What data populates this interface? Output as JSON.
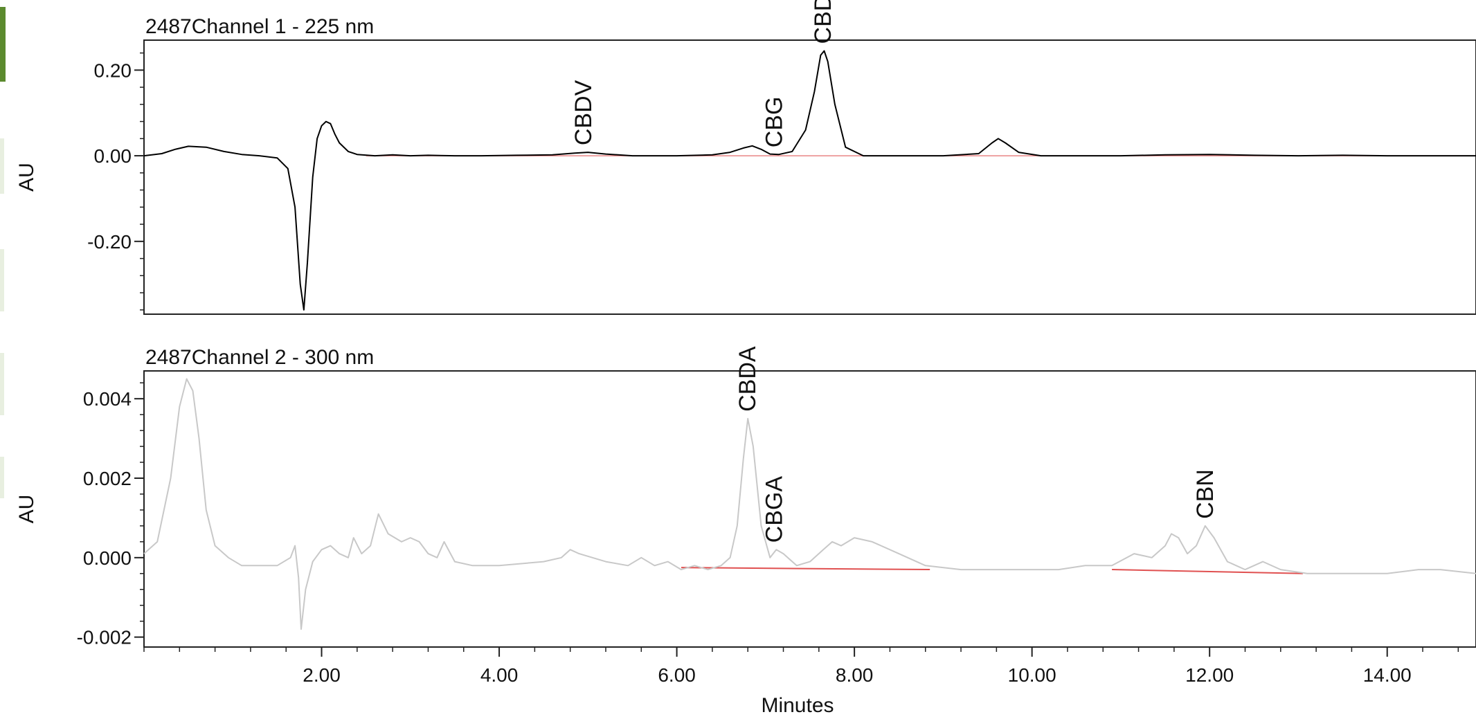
{
  "chart_data": [
    {
      "type": "line",
      "title": "2487Channel 1 - 225 nm",
      "xlabel": "",
      "ylabel": "AU",
      "xlim": [
        0,
        15
      ],
      "ylim": [
        -0.37,
        0.27
      ],
      "yticks": [
        -0.2,
        0.0,
        0.2
      ],
      "ytick_labels": [
        "-0.20",
        "0.00",
        "0.20"
      ],
      "grid": false,
      "line_color": "#000000",
      "baseline_color": "#e05050",
      "peaks": [
        {
          "label": "CBDV",
          "x": 4.95,
          "y": 0.008
        },
        {
          "label": "CBG",
          "x": 7.1,
          "y": 0.003
        },
        {
          "label": "CBD",
          "x": 7.65,
          "y": 0.245
        }
      ],
      "series": [
        {
          "x": [
            0,
            0.2,
            0.35,
            0.5,
            0.7,
            0.9,
            1.1,
            1.3,
            1.5,
            1.62,
            1.7,
            1.76,
            1.8,
            1.84,
            1.9,
            1.95,
            2.0,
            2.05,
            2.1,
            2.15,
            2.2,
            2.3,
            2.4,
            2.6,
            2.8,
            3.0,
            3.2,
            3.5,
            3.8,
            4.2,
            4.6,
            4.85,
            5.0,
            5.2,
            5.5,
            6.0,
            6.4,
            6.6,
            6.75,
            6.85,
            6.95,
            7.05,
            7.15,
            7.3,
            7.45,
            7.55,
            7.62,
            7.66,
            7.7,
            7.78,
            7.9,
            8.1,
            8.5,
            9.0,
            9.4,
            9.55,
            9.62,
            9.7,
            9.85,
            10.1,
            10.5,
            11.0,
            11.5,
            12.0,
            12.5,
            13.0,
            13.5,
            14.0,
            14.5,
            15.0
          ],
          "y": [
            0,
            0.005,
            0.015,
            0.022,
            0.02,
            0.01,
            0.003,
            0.0,
            -0.005,
            -0.03,
            -0.12,
            -0.3,
            -0.36,
            -0.25,
            -0.05,
            0.04,
            0.07,
            0.08,
            0.075,
            0.05,
            0.03,
            0.01,
            0.003,
            0.0,
            0.002,
            0.0,
            0.001,
            0.0,
            0.0,
            0.001,
            0.002,
            0.006,
            0.008,
            0.004,
            0.0,
            0.0,
            0.002,
            0.008,
            0.018,
            0.023,
            0.015,
            0.004,
            0.003,
            0.01,
            0.06,
            0.15,
            0.235,
            0.245,
            0.22,
            0.12,
            0.02,
            0.0,
            0.0,
            0.0,
            0.005,
            0.03,
            0.04,
            0.03,
            0.008,
            0.0,
            0.0,
            0.0,
            0.002,
            0.003,
            0.001,
            0.0,
            0.001,
            0.0,
            0.0,
            0.0
          ]
        }
      ]
    },
    {
      "type": "line",
      "title": "2487Channel 2 - 300 nm",
      "xlabel": "Minutes",
      "ylabel": "AU",
      "xlim": [
        0,
        15
      ],
      "ylim": [
        -0.00225,
        0.0047
      ],
      "yticks": [
        -0.002,
        0.0,
        0.002,
        0.004
      ],
      "ytick_labels": [
        "-0.002",
        "0.000",
        "0.002",
        "0.004"
      ],
      "xticks": [
        2,
        4,
        6,
        8,
        10,
        12,
        14
      ],
      "xtick_labels": [
        "2.00",
        "4.00",
        "6.00",
        "8.00",
        "10.00",
        "12.00",
        "14.00"
      ],
      "grid": false,
      "line_color": "#c8c8c8",
      "baseline_color": "#e05050",
      "peaks": [
        {
          "label": "CBDA",
          "x": 6.8,
          "y": 0.0035
        },
        {
          "label": "CBGA",
          "x": 7.1,
          "y": 0.0002
        },
        {
          "label": "CBN",
          "x": 11.95,
          "y": 0.0008
        }
      ],
      "baselines": [
        {
          "x1": 6.05,
          "y1": -0.00025,
          "x2": 8.85,
          "y2": -0.0003
        },
        {
          "x1": 10.9,
          "y1": -0.0003,
          "x2": 13.05,
          "y2": -0.0004
        }
      ],
      "series": [
        {
          "x": [
            0,
            0.15,
            0.3,
            0.4,
            0.48,
            0.55,
            0.62,
            0.7,
            0.8,
            0.95,
            1.1,
            1.3,
            1.5,
            1.65,
            1.7,
            1.74,
            1.77,
            1.82,
            1.9,
            2.0,
            2.1,
            2.2,
            2.3,
            2.36,
            2.45,
            2.55,
            2.64,
            2.75,
            2.9,
            3.0,
            3.1,
            3.2,
            3.3,
            3.38,
            3.5,
            3.7,
            4.0,
            4.5,
            4.7,
            4.8,
            4.9,
            5.2,
            5.45,
            5.6,
            5.75,
            5.9,
            6.05,
            6.2,
            6.35,
            6.5,
            6.6,
            6.68,
            6.75,
            6.8,
            6.86,
            6.95,
            7.05,
            7.12,
            7.2,
            7.35,
            7.5,
            7.65,
            7.75,
            7.85,
            8.0,
            8.2,
            8.5,
            8.8,
            9.2,
            9.8,
            10.3,
            10.6,
            10.9,
            11.15,
            11.35,
            11.5,
            11.57,
            11.65,
            11.75,
            11.85,
            11.95,
            12.05,
            12.2,
            12.4,
            12.6,
            12.8,
            13.1,
            13.6,
            14.0,
            14.35,
            14.6,
            15.0
          ],
          "y": [
            0.0001,
            0.0004,
            0.002,
            0.0038,
            0.0045,
            0.0042,
            0.003,
            0.0012,
            0.0003,
            0.0,
            -0.0002,
            -0.0002,
            -0.0002,
            0.0,
            0.0003,
            -0.0005,
            -0.0018,
            -0.0008,
            -0.0001,
            0.0002,
            0.0003,
            0.0001,
            0.0,
            0.0005,
            0.0001,
            0.0003,
            0.0011,
            0.0006,
            0.0004,
            0.0005,
            0.0004,
            0.0001,
            0.0,
            0.0004,
            -0.0001,
            -0.0002,
            -0.0002,
            -0.0001,
            0.0,
            0.0002,
            0.0001,
            -0.0001,
            -0.0002,
            0.0,
            -0.0002,
            -0.0001,
            -0.0003,
            -0.0002,
            -0.0003,
            -0.0002,
            0.0,
            0.0008,
            0.0025,
            0.0035,
            0.0028,
            0.0008,
            0.0,
            0.0002,
            0.0001,
            -0.0002,
            -0.0001,
            0.0002,
            0.0004,
            0.0003,
            0.0005,
            0.0004,
            0.0001,
            -0.0002,
            -0.0003,
            -0.0003,
            -0.0003,
            -0.0002,
            -0.0002,
            0.0001,
            0.0,
            0.0003,
            0.0006,
            0.0005,
            0.0001,
            0.0003,
            0.0008,
            0.0005,
            -0.0001,
            -0.0003,
            -0.0001,
            -0.0003,
            -0.0004,
            -0.0004,
            -0.0004,
            -0.0003,
            -0.0003,
            -0.0004
          ]
        }
      ]
    }
  ]
}
